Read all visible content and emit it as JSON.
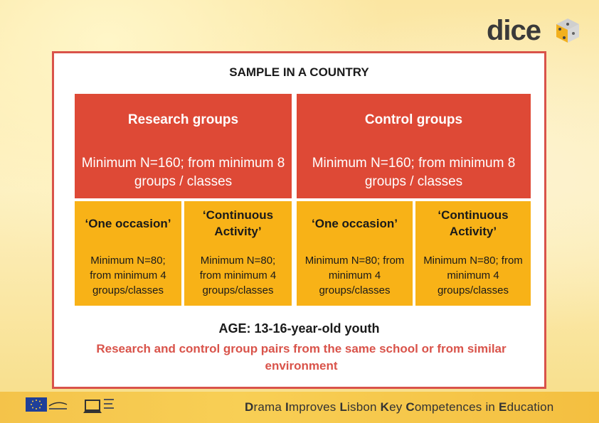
{
  "logo": {
    "text": "dice"
  },
  "main": {
    "title": "SAMPLE IN A COUNTRY",
    "groups": [
      {
        "label": "Research groups",
        "detail": "Minimum N=160; from minimum 8 groups / classes",
        "occasions": [
          {
            "label": "‘One occasion’",
            "detail": "Minimum N=80; from minimum 4 groups/classes"
          },
          {
            "label": "‘Continuous Activity’",
            "detail": "Minimum N=80; from minimum 4 groups/classes"
          }
        ]
      },
      {
        "label": "Control groups",
        "detail": "Minimum N=160; from minimum 8 groups / classes",
        "occasions": [
          {
            "label": "‘One occasion’",
            "detail": "Minimum N=80; from minimum 4 groups/classes"
          },
          {
            "label": "‘Continuous Activity’",
            "detail": "Minimum N=80; from minimum 4 groups/classes"
          }
        ]
      }
    ],
    "age": "AGE: 13-16-year-old youth",
    "pairs_note": "Research and control group pairs from the same school or from similar environment"
  },
  "footer": {
    "words": [
      {
        "initial": "D",
        "rest": "rama"
      },
      {
        "initial": "I",
        "rest": "mproves"
      },
      {
        "initial": "L",
        "rest": "isbon"
      },
      {
        "initial": "K",
        "rest": "ey"
      },
      {
        "initial": "C",
        "rest": "ompetences"
      },
      {
        "initial": "",
        "rest": "in"
      },
      {
        "initial": "E",
        "rest": "ducation"
      }
    ]
  },
  "colors": {
    "red": "#de4936",
    "yellow": "#f8b217",
    "frame": "#d9534a"
  },
  "icons": [
    "eu-flag-icon",
    "laptop-icon",
    "dice-cube-icon"
  ]
}
